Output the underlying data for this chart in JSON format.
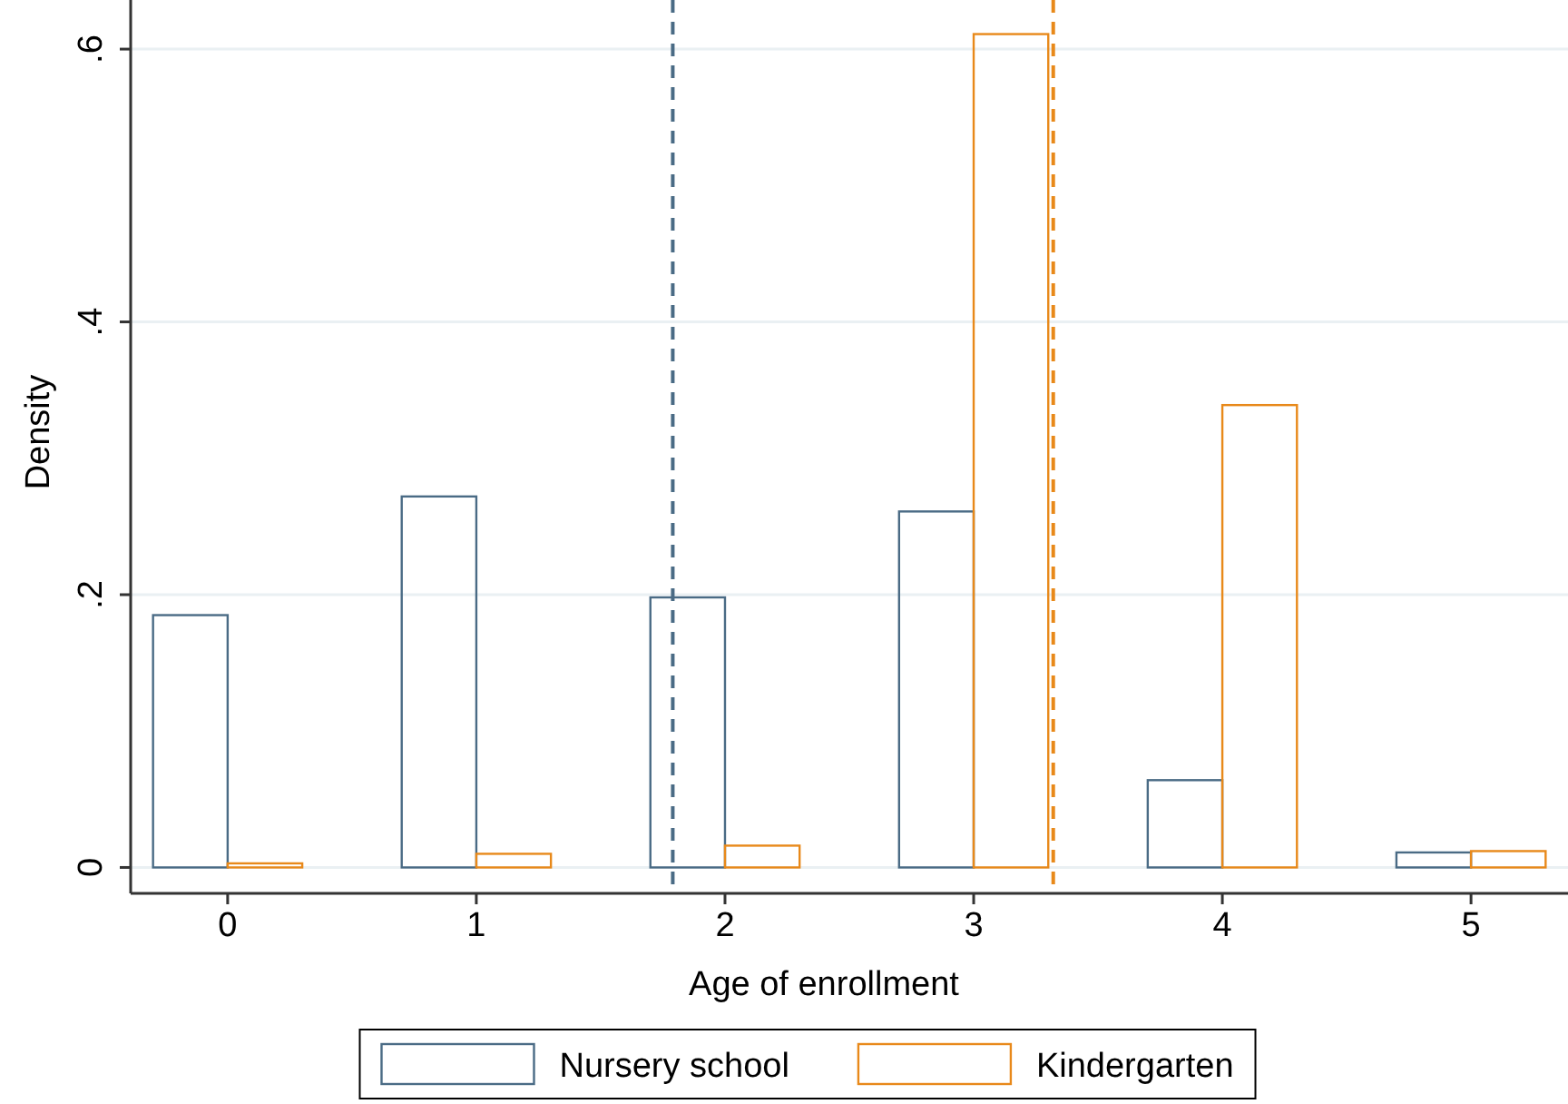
{
  "chart_data": {
    "type": "bar",
    "xlabel": "Age of enrollment",
    "ylabel": "Density",
    "x": [
      0,
      1,
      2,
      3,
      4,
      5
    ],
    "series": [
      {
        "name": "Nursery school",
        "color": "#4a6b85",
        "values": [
          0.185,
          0.272,
          0.198,
          0.261,
          0.064,
          0.011
        ]
      },
      {
        "name": "Kindergarten",
        "color": "#e8891a",
        "values": [
          0.003,
          0.01,
          0.016,
          0.611,
          0.339,
          0.012
        ]
      }
    ],
    "xlim": [
      -0.39,
      5.39
    ],
    "xticks": [
      0,
      1,
      2,
      3,
      4,
      5
    ],
    "ylim": [
      -0.019,
      0.636
    ],
    "yticks": [
      {
        "value": 0,
        "label": "0"
      },
      {
        "value": 0.2,
        "label": ".2"
      },
      {
        "value": 0.4,
        "label": ".4"
      },
      {
        "value": 0.6,
        "label": ".6"
      }
    ],
    "ref_lines": [
      {
        "axis": "x",
        "value": 1.79,
        "color": "#4a6b85",
        "line_style": "dashed"
      },
      {
        "axis": "x",
        "value": 3.32,
        "color": "#e8891a",
        "line_style": "dashed"
      }
    ],
    "grid": "y",
    "legend": "bottom"
  }
}
